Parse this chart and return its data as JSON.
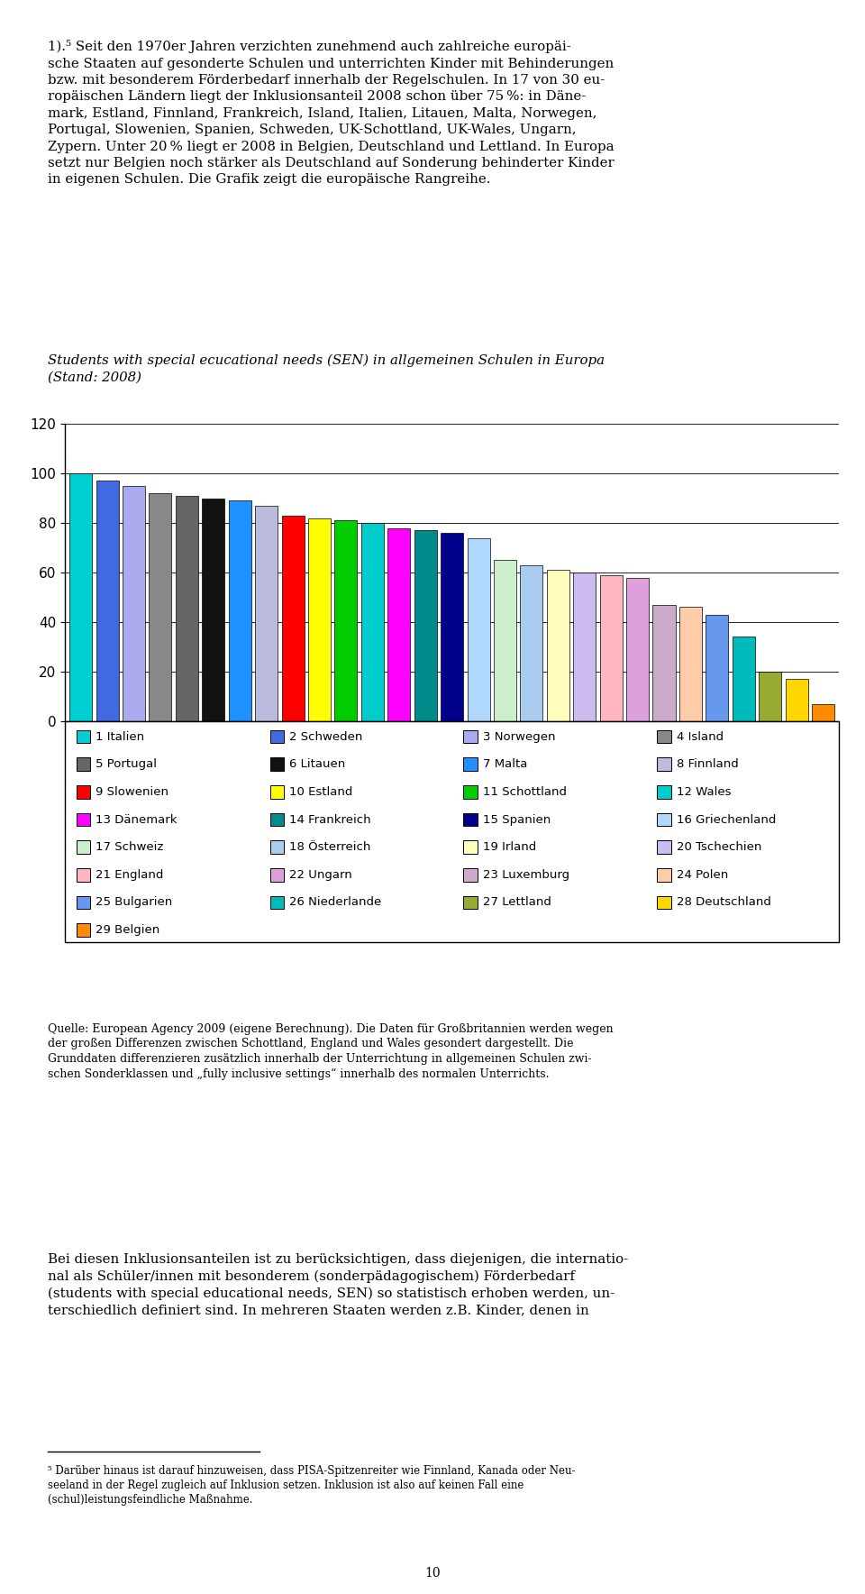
{
  "countries": [
    "1 Italien",
    "2 Schweden",
    "3 Norwegen",
    "4 Island",
    "5 Portugal",
    "6 Litauen",
    "7 Malta",
    "8 Finnland",
    "9 Slowenien",
    "10 Estland",
    "11 Schottland",
    "12 Wales",
    "13 Dänemark",
    "14 Frankreich",
    "15 Spanien",
    "16 Griechenland",
    "17 Schweiz",
    "18 Österreich",
    "19 Irland",
    "20 Tschechien",
    "21 England",
    "22 Ungarn",
    "23 Luxemburg",
    "24 Polen",
    "25 Bulgarien",
    "26 Niederlande",
    "27 Lettland",
    "28 Deutschland",
    "29 Belgien"
  ],
  "values": [
    100,
    97,
    95,
    92,
    91,
    90,
    89,
    87,
    83,
    82,
    81,
    80,
    78,
    77,
    76,
    74,
    65,
    63,
    61,
    60,
    59,
    58,
    47,
    46,
    43,
    34,
    20,
    17,
    7
  ],
  "colors": [
    "#00CED1",
    "#4169E1",
    "#AAAAEE",
    "#888888",
    "#666666",
    "#111111",
    "#1E90FF",
    "#BBBBDD",
    "#FF0000",
    "#FFFF00",
    "#00CC00",
    "#00CCCC",
    "#FF00FF",
    "#008B8B",
    "#00008B",
    "#B0D8FF",
    "#CCEECC",
    "#AACCEE",
    "#FFFFBB",
    "#CCBBEE",
    "#FFB6C1",
    "#DDA0DD",
    "#CCAACC",
    "#FFCCAA",
    "#6699EE",
    "#00BBBB",
    "#99AA33",
    "#FFD700",
    "#FF8C00"
  ],
  "legend_labels": [
    "1 Italien",
    "2 Schweden",
    "3 Norwegen",
    "4 Island",
    "5 Portugal",
    "6 Litauen",
    "7 Malta",
    "8 Finnland",
    "9 Slowenien",
    "10 Estland",
    "11 Schottland",
    "12 Wales",
    "13 Dänemark",
    "14 Frankreich",
    "15 Spanien",
    "16 Griechenland",
    "17 Schweiz",
    "18 Österreich",
    "19 Irland",
    "20 Tschechien",
    "21 England",
    "22 Ungarn",
    "23 Luxemburg",
    "24 Polen",
    "25 Bulgarien",
    "26 Niederlande",
    "27 Lettland",
    "28 Deutschland",
    "29 Belgien"
  ],
  "title": "Students with special ecucational needs (SEN) in allgemeinen Schulen in Europa\n(Stand: 2008)",
  "ylim": [
    0,
    120
  ],
  "yticks": [
    0,
    20,
    40,
    60,
    80,
    100,
    120
  ],
  "background_color": "#FFFFFF"
}
